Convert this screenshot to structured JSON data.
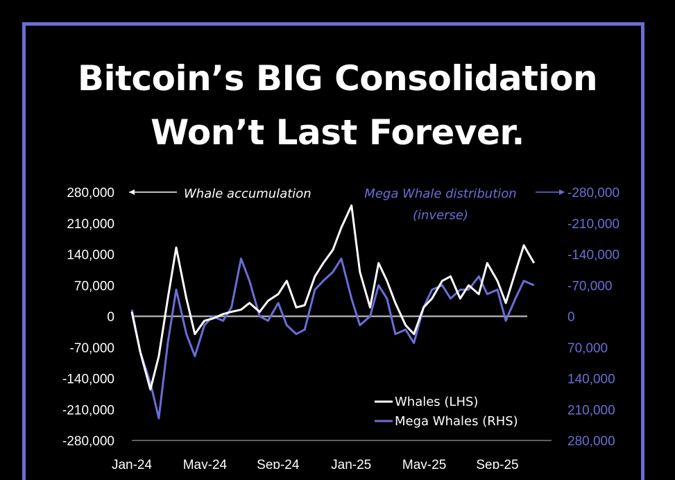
{
  "title": {
    "line1": "Bitcoin’s BIG Consolidation",
    "line2": "Won’t Last Forever."
  },
  "colors": {
    "background": "#000000",
    "frame": "#6a6ed6",
    "whales": "#ffffff",
    "mega_whales": "#6a6ed6",
    "zero_line": "#aaaaaa"
  },
  "annotations": {
    "left": "Whale accumulation",
    "right_line1": "Mega Whale distribution",
    "right_line2": "(inverse)"
  },
  "legend": {
    "whales": "Whales (LHS)",
    "mega_whales": "Mega Whales (RHS)"
  },
  "chart_data": {
    "type": "line",
    "title": "Bitcoin’s BIG Consolidation Won’t Last Forever.",
    "x": [
      "2024-01-01",
      "2024-01-15",
      "2024-02-01",
      "2024-02-15",
      "2024-03-01",
      "2024-03-15",
      "2024-04-01",
      "2024-04-15",
      "2024-05-01",
      "2024-05-15",
      "2024-06-01",
      "2024-06-15",
      "2024-07-01",
      "2024-07-15",
      "2024-08-01",
      "2024-08-15",
      "2024-09-01",
      "2024-09-15",
      "2024-10-01",
      "2024-10-15",
      "2024-11-01",
      "2024-11-15",
      "2024-12-01",
      "2024-12-15",
      "2025-01-01",
      "2025-01-15",
      "2025-02-01",
      "2025-02-15",
      "2025-03-01",
      "2025-03-15",
      "2025-04-01",
      "2025-04-15",
      "2025-05-01",
      "2025-05-15",
      "2025-06-01",
      "2025-06-15",
      "2025-07-01",
      "2025-07-15",
      "2025-08-01",
      "2025-08-15",
      "2025-09-01",
      "2025-09-15",
      "2025-10-01",
      "2025-10-15",
      "2025-11-01"
    ],
    "x_ticks": [
      "Jan-24",
      "May-24",
      "Sep-24",
      "Jan-25",
      "May-25",
      "Sep-25"
    ],
    "left_axis": {
      "label": "",
      "ticks": [
        "280,000",
        "210,000",
        "140,000",
        "70,000",
        "0",
        "-70,000",
        "-140,000",
        "-210,000",
        "-280,000"
      ],
      "ylim": [
        -280000,
        280000
      ]
    },
    "right_axis": {
      "label": "",
      "ticks": [
        "-280,000",
        "-210,000",
        "-140,000",
        "-70,000",
        "0",
        "70,000",
        "140,000",
        "210,000",
        "280,000"
      ],
      "ylim": [
        280000,
        -280000
      ],
      "inverted": true
    },
    "grid": false,
    "legend_position": "bottom-right",
    "series": [
      {
        "name": "Whales (LHS)",
        "axis": "left",
        "values": [
          10000,
          -80000,
          -165000,
          -90000,
          40000,
          155000,
          40000,
          -40000,
          -10000,
          -5000,
          5000,
          10000,
          15000,
          30000,
          10000,
          35000,
          50000,
          80000,
          20000,
          25000,
          90000,
          120000,
          150000,
          200000,
          250000,
          100000,
          20000,
          120000,
          80000,
          30000,
          -20000,
          -40000,
          20000,
          40000,
          80000,
          90000,
          40000,
          70000,
          50000,
          120000,
          80000,
          30000,
          100000,
          160000,
          120000
        ]
      },
      {
        "name": "Mega Whales (RHS)",
        "axis": "right",
        "values": [
          -15000,
          80000,
          150000,
          230000,
          60000,
          -60000,
          40000,
          90000,
          20000,
          0,
          10000,
          -20000,
          -130000,
          -80000,
          0,
          10000,
          -30000,
          20000,
          40000,
          30000,
          -60000,
          -80000,
          -100000,
          -130000,
          -40000,
          20000,
          0,
          -70000,
          -40000,
          40000,
          30000,
          60000,
          -20000,
          -60000,
          -70000,
          -40000,
          -60000,
          -60000,
          -90000,
          -50000,
          -60000,
          10000,
          -40000,
          -80000,
          -70000
        ]
      }
    ]
  }
}
